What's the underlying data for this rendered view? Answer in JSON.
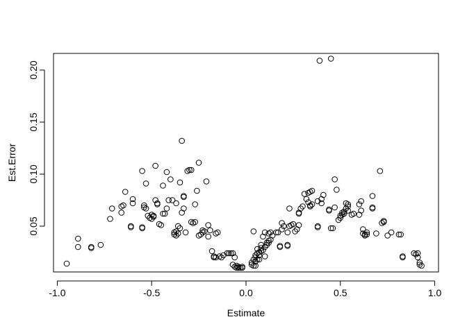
{
  "chart_data": {
    "type": "scatter",
    "title": "",
    "xlabel": "Estimate",
    "ylabel": "Est.Error",
    "xlim": [
      -1.02,
      1.02
    ],
    "ylim": [
      0.006,
      0.216
    ],
    "xticks": [
      -1.0,
      -0.5,
      0.0,
      0.5,
      1.0
    ],
    "xtick_labels": [
      "-1.0",
      "-0.5",
      "0.0",
      "0.5",
      "1.0"
    ],
    "yticks": [
      0.05,
      0.1,
      0.15,
      0.2
    ],
    "ytick_labels": [
      "0.05",
      "0.10",
      "0.15",
      "0.20"
    ],
    "grid": false,
    "marker": "open-circle",
    "series": [
      {
        "points": [
          [
            -0.95,
            0.014
          ],
          [
            -0.89,
            0.03
          ],
          [
            -0.89,
            0.038
          ],
          [
            -0.82,
            0.03
          ],
          [
            -0.82,
            0.029
          ],
          [
            -0.77,
            0.032
          ],
          [
            -0.72,
            0.057
          ],
          [
            -0.71,
            0.067
          ],
          [
            -0.66,
            0.063
          ],
          [
            -0.66,
            0.069
          ],
          [
            -0.65,
            0.07
          ],
          [
            -0.64,
            0.083
          ],
          [
            -0.61,
            0.05
          ],
          [
            -0.61,
            0.049
          ],
          [
            -0.6,
            0.072
          ],
          [
            -0.6,
            0.076
          ],
          [
            -0.55,
            0.048
          ],
          [
            -0.55,
            0.049
          ],
          [
            -0.55,
            0.103
          ],
          [
            -0.54,
            0.068
          ],
          [
            -0.54,
            0.07
          ],
          [
            -0.53,
            0.091
          ],
          [
            -0.53,
            0.067
          ],
          [
            -0.52,
            0.06
          ],
          [
            -0.51,
            0.058
          ],
          [
            -0.5,
            0.057
          ],
          [
            -0.5,
            0.061
          ],
          [
            -0.49,
            0.059
          ],
          [
            -0.49,
            0.06
          ],
          [
            -0.48,
            0.075
          ],
          [
            -0.48,
            0.108
          ],
          [
            -0.47,
            0.072
          ],
          [
            -0.47,
            0.071
          ],
          [
            -0.46,
            0.052
          ],
          [
            -0.45,
            0.051
          ],
          [
            -0.44,
            0.062
          ],
          [
            -0.44,
            0.089
          ],
          [
            -0.43,
            0.062
          ],
          [
            -0.42,
            0.102
          ],
          [
            -0.42,
            0.067
          ],
          [
            -0.41,
            0.075
          ],
          [
            -0.4,
            0.095
          ],
          [
            -0.39,
            0.075
          ],
          [
            -0.38,
            0.044
          ],
          [
            -0.38,
            0.042
          ],
          [
            -0.37,
            0.045
          ],
          [
            -0.37,
            0.041
          ],
          [
            -0.37,
            0.072
          ],
          [
            -0.36,
            0.05
          ],
          [
            -0.36,
            0.043
          ],
          [
            -0.35,
            0.048
          ],
          [
            -0.35,
            0.092
          ],
          [
            -0.34,
            0.132
          ],
          [
            -0.34,
            0.063
          ],
          [
            -0.33,
            0.079
          ],
          [
            -0.33,
            0.078
          ],
          [
            -0.33,
            0.067
          ],
          [
            -0.32,
            0.044
          ],
          [
            -0.31,
            0.103
          ],
          [
            -0.3,
            0.104
          ],
          [
            -0.29,
            0.104
          ],
          [
            -0.29,
            0.054
          ],
          [
            -0.28,
            0.053
          ],
          [
            -0.27,
            0.054
          ],
          [
            -0.27,
            0.071
          ],
          [
            -0.26,
            0.084
          ],
          [
            -0.25,
            0.111
          ],
          [
            -0.25,
            0.041
          ],
          [
            -0.24,
            0.042
          ],
          [
            -0.23,
            0.046
          ],
          [
            -0.23,
            0.044
          ],
          [
            -0.22,
            0.045
          ],
          [
            -0.21,
            0.093
          ],
          [
            -0.2,
            0.04
          ],
          [
            -0.2,
            0.051
          ],
          [
            -0.19,
            0.046
          ],
          [
            -0.18,
            0.026
          ],
          [
            -0.17,
            0.021
          ],
          [
            -0.17,
            0.02
          ],
          [
            -0.16,
            0.02
          ],
          [
            -0.16,
            0.043
          ],
          [
            -0.15,
            0.044
          ],
          [
            -0.14,
            0.021
          ],
          [
            -0.13,
            0.02
          ],
          [
            -0.12,
            0.022
          ],
          [
            -0.1,
            0.024
          ],
          [
            -0.09,
            0.024
          ],
          [
            -0.08,
            0.024
          ],
          [
            -0.07,
            0.013
          ],
          [
            -0.07,
            0.024
          ],
          [
            -0.06,
            0.02
          ],
          [
            -0.06,
            0.011
          ],
          [
            -0.05,
            0.012
          ],
          [
            -0.05,
            0.01
          ],
          [
            -0.04,
            0.01
          ],
          [
            -0.04,
            0.011
          ],
          [
            -0.03,
            0.01
          ],
          [
            -0.02,
            0.011
          ],
          [
            -0.02,
            0.01
          ],
          [
            0.03,
            0.015
          ],
          [
            0.03,
            0.013
          ],
          [
            0.04,
            0.012
          ],
          [
            0.04,
            0.045
          ],
          [
            0.04,
            0.018
          ],
          [
            0.05,
            0.02
          ],
          [
            0.05,
            0.016
          ],
          [
            0.05,
            0.012
          ],
          [
            0.05,
            0.022
          ],
          [
            0.06,
            0.024
          ],
          [
            0.06,
            0.018
          ],
          [
            0.06,
            0.028
          ],
          [
            0.07,
            0.025
          ],
          [
            0.07,
            0.018
          ],
          [
            0.07,
            0.022
          ],
          [
            0.08,
            0.029
          ],
          [
            0.08,
            0.026
          ],
          [
            0.08,
            0.032
          ],
          [
            0.09,
            0.04
          ],
          [
            0.09,
            0.027
          ],
          [
            0.1,
            0.03
          ],
          [
            0.1,
            0.044
          ],
          [
            0.1,
            0.021
          ],
          [
            0.11,
            0.034
          ],
          [
            0.11,
            0.032
          ],
          [
            0.12,
            0.036
          ],
          [
            0.12,
            0.034
          ],
          [
            0.12,
            0.043
          ],
          [
            0.13,
            0.037
          ],
          [
            0.13,
            0.044
          ],
          [
            0.14,
            0.041
          ],
          [
            0.16,
            0.044
          ],
          [
            0.17,
            0.044
          ],
          [
            0.18,
            0.03
          ],
          [
            0.18,
            0.031
          ],
          [
            0.19,
            0.047
          ],
          [
            0.19,
            0.053
          ],
          [
            0.2,
            0.05
          ],
          [
            0.22,
            0.032
          ],
          [
            0.22,
            0.031
          ],
          [
            0.22,
            0.044
          ],
          [
            0.23,
            0.05
          ],
          [
            0.23,
            0.067
          ],
          [
            0.24,
            0.051
          ],
          [
            0.25,
            0.052
          ],
          [
            0.26,
            0.045
          ],
          [
            0.27,
            0.047
          ],
          [
            0.28,
            0.051
          ],
          [
            0.28,
            0.062
          ],
          [
            0.28,
            0.063
          ],
          [
            0.29,
            0.067
          ],
          [
            0.3,
            0.069
          ],
          [
            0.31,
            0.081
          ],
          [
            0.32,
            0.076
          ],
          [
            0.33,
            0.073
          ],
          [
            0.33,
            0.082
          ],
          [
            0.34,
            0.083
          ],
          [
            0.34,
            0.069
          ],
          [
            0.34,
            0.07
          ],
          [
            0.35,
            0.084
          ],
          [
            0.35,
            0.071
          ],
          [
            0.38,
            0.05
          ],
          [
            0.38,
            0.049
          ],
          [
            0.38,
            0.074
          ],
          [
            0.39,
            0.209
          ],
          [
            0.4,
            0.072
          ],
          [
            0.4,
            0.076
          ],
          [
            0.41,
            0.08
          ],
          [
            0.44,
            0.065
          ],
          [
            0.44,
            0.066
          ],
          [
            0.45,
            0.211
          ],
          [
            0.45,
            0.048
          ],
          [
            0.46,
            0.048
          ],
          [
            0.47,
            0.068
          ],
          [
            0.47,
            0.095
          ],
          [
            0.48,
            0.085
          ],
          [
            0.49,
            0.056
          ],
          [
            0.5,
            0.058
          ],
          [
            0.5,
            0.06
          ],
          [
            0.51,
            0.061
          ],
          [
            0.51,
            0.063
          ],
          [
            0.52,
            0.062
          ],
          [
            0.52,
            0.064
          ],
          [
            0.53,
            0.067
          ],
          [
            0.53,
            0.072
          ],
          [
            0.54,
            0.069
          ],
          [
            0.54,
            0.071
          ],
          [
            0.54,
            0.065
          ],
          [
            0.56,
            0.061
          ],
          [
            0.57,
            0.062
          ],
          [
            0.6,
            0.061
          ],
          [
            0.6,
            0.071
          ],
          [
            0.61,
            0.074
          ],
          [
            0.61,
            0.065
          ],
          [
            0.62,
            0.047
          ],
          [
            0.62,
            0.043
          ],
          [
            0.63,
            0.042
          ],
          [
            0.63,
            0.041
          ],
          [
            0.64,
            0.042
          ],
          [
            0.64,
            0.044
          ],
          [
            0.67,
            0.079
          ],
          [
            0.67,
            0.068
          ],
          [
            0.67,
            0.067
          ],
          [
            0.69,
            0.043
          ],
          [
            0.71,
            0.103
          ],
          [
            0.72,
            0.053
          ],
          [
            0.73,
            0.055
          ],
          [
            0.73,
            0.054
          ],
          [
            0.75,
            0.041
          ],
          [
            0.77,
            0.044
          ],
          [
            0.81,
            0.042
          ],
          [
            0.82,
            0.042
          ],
          [
            0.83,
            0.02
          ],
          [
            0.83,
            0.021
          ],
          [
            0.89,
            0.024
          ],
          [
            0.9,
            0.023
          ],
          [
            0.91,
            0.024
          ],
          [
            0.91,
            0.02
          ],
          [
            0.92,
            0.015
          ],
          [
            0.92,
            0.013
          ],
          [
            0.93,
            0.012
          ]
        ]
      }
    ]
  }
}
